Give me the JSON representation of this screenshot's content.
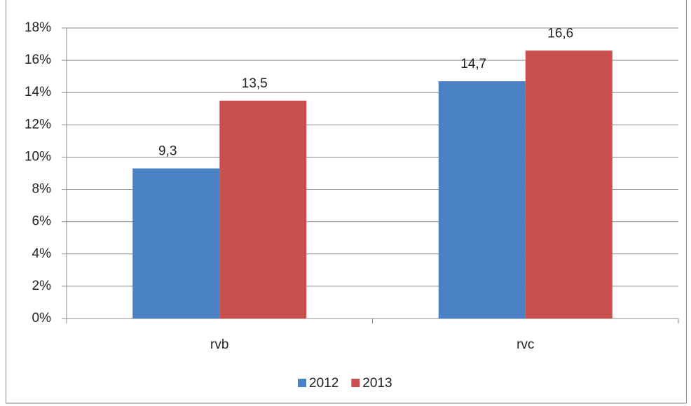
{
  "chart_data": {
    "type": "bar",
    "categories": [
      "rvb",
      "rvc"
    ],
    "series": [
      {
        "name": "2012",
        "color": "#4a81c4",
        "values": [
          9.3,
          14.7
        ],
        "value_labels": [
          "9,3",
          "14,7"
        ]
      },
      {
        "name": "2013",
        "color": "#c9504d",
        "values": [
          13.5,
          16.6
        ],
        "value_labels": [
          "13,5",
          "16,6"
        ]
      }
    ],
    "ylim": [
      0,
      18
    ],
    "yticks": [
      {
        "value": 0,
        "label": "0%"
      },
      {
        "value": 2,
        "label": "2%"
      },
      {
        "value": 4,
        "label": "4%"
      },
      {
        "value": 6,
        "label": "6%"
      },
      {
        "value": 8,
        "label": "8%"
      },
      {
        "value": 10,
        "label": "10%"
      },
      {
        "value": 12,
        "label": "12%"
      },
      {
        "value": 14,
        "label": "14%"
      },
      {
        "value": 16,
        "label": "16%"
      },
      {
        "value": 18,
        "label": "18%"
      }
    ],
    "grid": true,
    "legend": "bottom"
  }
}
